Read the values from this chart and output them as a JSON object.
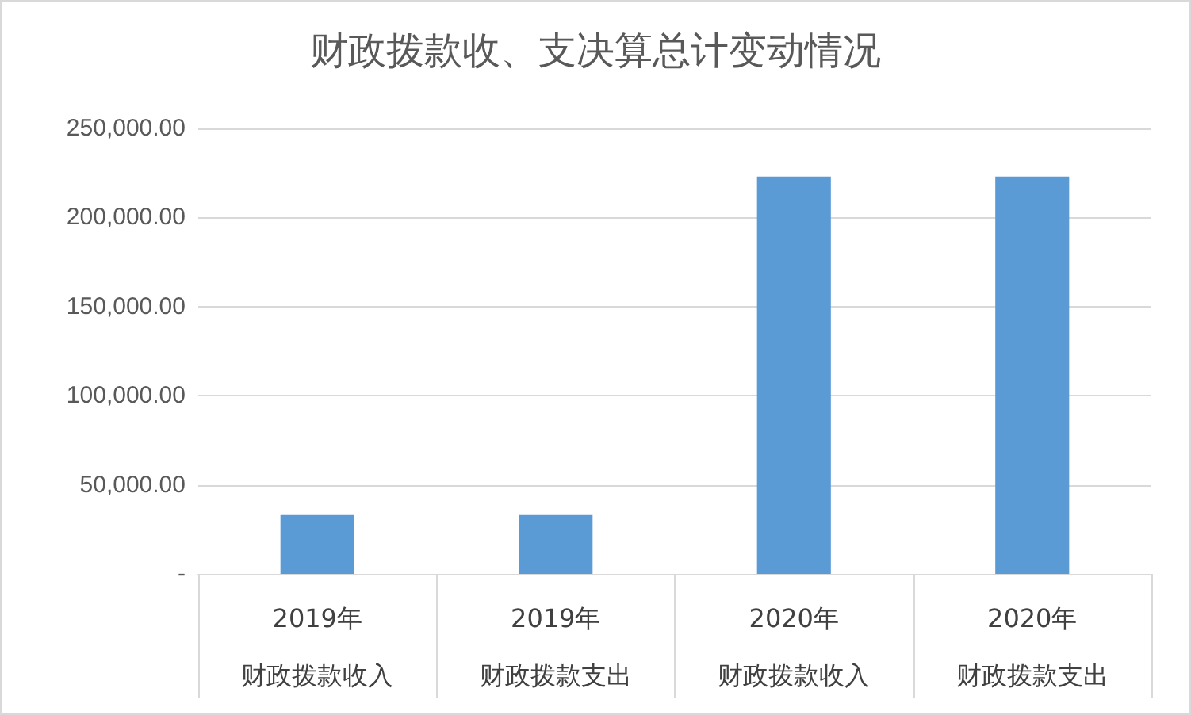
{
  "chart_data": {
    "type": "bar",
    "title": "财政拨款收、支决算总计变动情况",
    "categories": [
      "2019年财政拨款收入",
      "2019年财政拨款支出",
      "2020年财政拨款收入",
      "2020年财政拨款支出"
    ],
    "values": [
      33000,
      33000,
      223000,
      223000
    ],
    "color": "#5b9bd5",
    "ylim": [
      0,
      250000
    ],
    "yticks": [
      {
        "value": 0,
        "label": "-"
      },
      {
        "value": 50000,
        "label": "50,000.00"
      },
      {
        "value": 100000,
        "label": "100,000.00"
      },
      {
        "value": 150000,
        "label": "150,000.00"
      },
      {
        "value": 200000,
        "label": "200,000.00"
      },
      {
        "value": 250000,
        "label": "250,000.00"
      }
    ],
    "grid": "y"
  }
}
